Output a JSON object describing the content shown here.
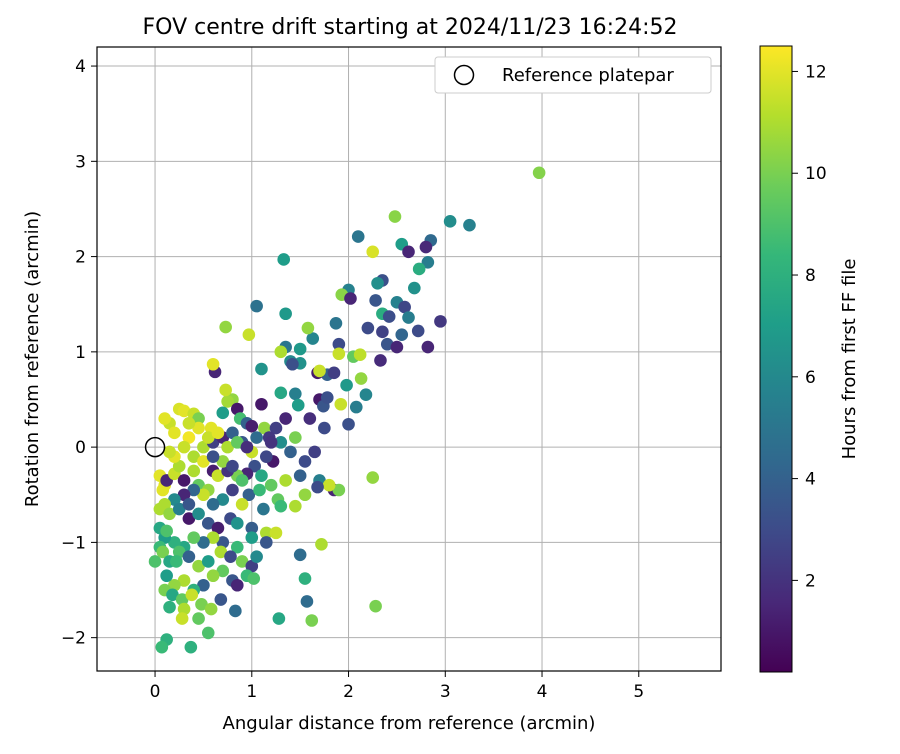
{
  "chart_data": {
    "type": "scatter",
    "title": "FOV centre drift starting at 2024/11/23 16:24:52",
    "xlabel": "Angular distance from reference (arcmin)",
    "ylabel": "Rotation from reference (arcmin)",
    "xlim": [
      -0.6,
      5.85
    ],
    "ylim": [
      -2.35,
      4.2
    ],
    "xticks": [
      0,
      1,
      2,
      3,
      4,
      5
    ],
    "yticks": [
      -2,
      -1,
      0,
      1,
      2,
      3,
      4
    ],
    "grid": true,
    "legend": {
      "position": "top-right",
      "entries": [
        "Reference platepar"
      ]
    },
    "reference_point": {
      "x": 0,
      "y": 0,
      "label": "Reference platepar"
    },
    "colorbar": {
      "label": "Hours from first FF file",
      "range": [
        0.2,
        12.5
      ],
      "ticks": [
        2,
        4,
        6,
        8,
        10,
        12
      ],
      "colormap": "viridis"
    },
    "points": [
      [
        3.97,
        2.88,
        10.2
      ],
      [
        3.25,
        2.33,
        5.6
      ],
      [
        3.05,
        2.37,
        6.2
      ],
      [
        2.85,
        2.17,
        4.4
      ],
      [
        2.8,
        2.1,
        1.6
      ],
      [
        2.48,
        2.42,
        10.3
      ],
      [
        2.55,
        2.13,
        7.0
      ],
      [
        2.62,
        2.05,
        1.5
      ],
      [
        2.25,
        2.05,
        11.8
      ],
      [
        2.1,
        2.21,
        5.0
      ],
      [
        2.82,
        1.94,
        5.4
      ],
      [
        2.73,
        1.87,
        7.8
      ],
      [
        2.68,
        1.67,
        6.4
      ],
      [
        2.35,
        1.75,
        3.2
      ],
      [
        2.5,
        1.52,
        5.6
      ],
      [
        2.3,
        1.72,
        6.3
      ],
      [
        2.0,
        1.65,
        5.6
      ],
      [
        1.93,
        1.6,
        10.3
      ],
      [
        2.02,
        1.56,
        1.5
      ],
      [
        2.28,
        1.54,
        3.5
      ],
      [
        2.35,
        1.4,
        7.8
      ],
      [
        2.42,
        1.37,
        3.1
      ],
      [
        2.58,
        1.47,
        2.8
      ],
      [
        2.95,
        1.32,
        2.2
      ],
      [
        2.62,
        1.36,
        5.4
      ],
      [
        2.55,
        1.18,
        4.2
      ],
      [
        2.72,
        1.22,
        3.0
      ],
      [
        2.4,
        1.08,
        3.5
      ],
      [
        2.5,
        1.05,
        1.5
      ],
      [
        2.82,
        1.05,
        1.5
      ],
      [
        2.35,
        1.21,
        2.6
      ],
      [
        2.2,
        1.25,
        3.0
      ],
      [
        1.87,
        1.3,
        5.0
      ],
      [
        1.9,
        1.08,
        3.0
      ],
      [
        2.05,
        0.95,
        9.5
      ],
      [
        2.12,
        0.97,
        11.3
      ],
      [
        2.33,
        0.91,
        1.7
      ],
      [
        2.18,
        0.55,
        5.8
      ],
      [
        2.13,
        0.72,
        10.5
      ],
      [
        1.98,
        0.65,
        6.8
      ],
      [
        2.08,
        0.42,
        5.4
      ],
      [
        2.0,
        0.24,
        3.2
      ],
      [
        1.92,
        0.45,
        11.5
      ],
      [
        1.9,
        0.98,
        11.5
      ],
      [
        1.78,
        0.76,
        4.0
      ],
      [
        1.63,
        1.14,
        5.8
      ],
      [
        1.58,
        1.25,
        10.5
      ],
      [
        1.5,
        1.03,
        6.8
      ],
      [
        1.35,
        1.05,
        5.0
      ],
      [
        1.3,
        1.0,
        11.0
      ],
      [
        1.35,
        1.4,
        6.8
      ],
      [
        1.33,
        1.97,
        7.0
      ],
      [
        1.05,
        1.48,
        4.8
      ],
      [
        0.97,
        1.18,
        11.5
      ],
      [
        0.73,
        1.26,
        10.5
      ],
      [
        1.1,
        0.82,
        6.5
      ],
      [
        1.5,
        0.88,
        6.4
      ],
      [
        1.4,
        0.9,
        6.0
      ],
      [
        1.42,
        0.87,
        3.2
      ],
      [
        1.3,
        0.57,
        7.5
      ],
      [
        1.45,
        0.56,
        5.5
      ],
      [
        1.7,
        0.5,
        1.0
      ],
      [
        1.68,
        0.78,
        1.0
      ],
      [
        1.74,
        0.43,
        3.5
      ],
      [
        1.7,
        0.8,
        11.5
      ],
      [
        1.85,
        0.78,
        2.5
      ],
      [
        1.78,
        0.52,
        3.2
      ],
      [
        1.48,
        0.44,
        7.0
      ],
      [
        1.1,
        0.45,
        1.0
      ],
      [
        0.8,
        0.5,
        10.5
      ],
      [
        0.62,
        0.79,
        1.5
      ],
      [
        0.6,
        0.87,
        12.0
      ],
      [
        0.75,
        0.48,
        10.8
      ],
      [
        0.73,
        0.6,
        11.5
      ],
      [
        0.7,
        0.36,
        7.0
      ],
      [
        0.85,
        0.4,
        1.0
      ],
      [
        0.88,
        0.3,
        8.8
      ],
      [
        0.95,
        0.25,
        4.0
      ],
      [
        1.0,
        0.22,
        1.2
      ],
      [
        1.13,
        0.2,
        10.5
      ],
      [
        1.25,
        0.2,
        2.5
      ],
      [
        1.35,
        0.3,
        1.5
      ],
      [
        1.6,
        0.3,
        1.8
      ],
      [
        1.75,
        0.2,
        3.0
      ],
      [
        1.45,
        0.1,
        10.0
      ],
      [
        1.3,
        0.05,
        6.2
      ],
      [
        1.18,
        0.1,
        2.2
      ],
      [
        0.25,
        0.4,
        11.8
      ],
      [
        0.3,
        0.38,
        12.0
      ],
      [
        0.4,
        0.35,
        11.5
      ],
      [
        0.45,
        0.3,
        10.0
      ],
      [
        0.15,
        0.25,
        11.5
      ],
      [
        0.1,
        0.3,
        12.0
      ],
      [
        0.2,
        0.15,
        12.0
      ],
      [
        0.35,
        0.1,
        12.3
      ],
      [
        0.5,
        0.0,
        11.0
      ],
      [
        0.6,
        0.05,
        2.5
      ],
      [
        0.7,
        0.1,
        1.5
      ],
      [
        0.8,
        0.15,
        4.0
      ],
      [
        0.9,
        0.05,
        3.5
      ],
      [
        1.05,
        0.1,
        4.5
      ],
      [
        1.2,
        0.05,
        2.0
      ],
      [
        1.4,
        -0.05,
        4.0
      ],
      [
        1.55,
        -0.15,
        3.0
      ],
      [
        1.65,
        -0.05,
        2.5
      ],
      [
        1.22,
        -0.15,
        1.0
      ],
      [
        1.03,
        -0.2,
        3.2
      ],
      [
        0.95,
        -0.28,
        1.5
      ],
      [
        0.85,
        -0.3,
        10.0
      ],
      [
        0.6,
        -0.25,
        1.2
      ],
      [
        0.4,
        -0.25,
        11.0
      ],
      [
        0.05,
        -0.3,
        12.0
      ],
      [
        0.1,
        -0.4,
        12.0
      ],
      [
        0.08,
        -0.45,
        12.0
      ],
      [
        0.12,
        -0.35,
        1.5
      ],
      [
        0.2,
        -0.28,
        11.5
      ],
      [
        0.25,
        -0.2,
        11.0
      ],
      [
        0.3,
        -0.35,
        1.0
      ],
      [
        0.45,
        -0.4,
        9.5
      ],
      [
        0.55,
        -0.45,
        10.5
      ],
      [
        0.65,
        -0.3,
        11.5
      ],
      [
        0.75,
        -0.25,
        2.0
      ],
      [
        0.9,
        -0.35,
        9.0
      ],
      [
        1.1,
        -0.3,
        7.5
      ],
      [
        1.2,
        -0.4,
        9.5
      ],
      [
        1.35,
        -0.35,
        11.0
      ],
      [
        1.5,
        -0.3,
        4.0
      ],
      [
        1.7,
        -0.35,
        5.5
      ],
      [
        1.85,
        -0.45,
        1.5
      ],
      [
        1.9,
        -0.45,
        10.0
      ],
      [
        1.8,
        -0.4,
        11.5
      ],
      [
        1.68,
        -0.42,
        3.0
      ],
      [
        2.25,
        -0.32,
        10.5
      ],
      [
        1.55,
        -0.5,
        10.5
      ],
      [
        1.27,
        -0.55,
        9.5
      ],
      [
        0.97,
        -0.5,
        4.0
      ],
      [
        0.8,
        -0.45,
        2.5
      ],
      [
        0.7,
        -0.55,
        6.0
      ],
      [
        0.6,
        -0.6,
        4.5
      ],
      [
        0.5,
        -0.5,
        11.5
      ],
      [
        0.4,
        -0.45,
        4.2
      ],
      [
        0.3,
        -0.5,
        1.5
      ],
      [
        0.2,
        -0.55,
        6.0
      ],
      [
        0.1,
        -0.6,
        11.0
      ],
      [
        0.05,
        -0.65,
        11.0
      ],
      [
        0.15,
        -0.7,
        10.5
      ],
      [
        0.25,
        -0.65,
        5.5
      ],
      [
        0.35,
        -0.75,
        1.0
      ],
      [
        0.45,
        -0.7,
        6.2
      ],
      [
        0.55,
        -0.8,
        3.5
      ],
      [
        0.65,
        -0.85,
        1.2
      ],
      [
        0.78,
        -0.75,
        3.0
      ],
      [
        0.85,
        -0.8,
        6.5
      ],
      [
        1.0,
        -0.85,
        3.8
      ],
      [
        1.15,
        -0.9,
        11.0
      ],
      [
        1.25,
        -0.9,
        11.5
      ],
      [
        1.45,
        -0.62,
        11.0
      ],
      [
        1.72,
        -1.02,
        11.0
      ],
      [
        1.5,
        -1.13,
        4.5
      ],
      [
        1.15,
        -1.0,
        3.5
      ],
      [
        1.0,
        -0.95,
        7.0
      ],
      [
        0.85,
        -1.05,
        8.5
      ],
      [
        0.7,
        -1.0,
        3.5
      ],
      [
        0.6,
        -0.95,
        11.0
      ],
      [
        0.5,
        -1.0,
        4.5
      ],
      [
        0.4,
        -0.95,
        9.5
      ],
      [
        0.3,
        -1.05,
        7.5
      ],
      [
        0.2,
        -1.0,
        8.0
      ],
      [
        0.1,
        -0.95,
        7.0
      ],
      [
        0.05,
        -1.05,
        8.5
      ],
      [
        0.0,
        -1.2,
        9.0
      ],
      [
        0.08,
        -1.1,
        10.0
      ],
      [
        0.15,
        -1.2,
        7.5
      ],
      [
        0.25,
        -1.1,
        9.0
      ],
      [
        0.35,
        -1.15,
        4.0
      ],
      [
        0.45,
        -1.25,
        10.5
      ],
      [
        0.55,
        -1.2,
        7.0
      ],
      [
        0.68,
        -1.1,
        11.0
      ],
      [
        0.78,
        -1.15,
        3.0
      ],
      [
        0.9,
        -1.2,
        10.0
      ],
      [
        1.0,
        -1.25,
        2.5
      ],
      [
        1.05,
        -1.15,
        6.0
      ],
      [
        0.95,
        -1.35,
        8.5
      ],
      [
        0.8,
        -1.4,
        3.5
      ],
      [
        0.85,
        -1.45,
        1.5
      ],
      [
        1.02,
        -1.38,
        9.0
      ],
      [
        0.7,
        -1.3,
        9.5
      ],
      [
        0.6,
        -1.35,
        10.5
      ],
      [
        0.5,
        -1.45,
        4.0
      ],
      [
        0.4,
        -1.5,
        8.0
      ],
      [
        0.3,
        -1.4,
        11.0
      ],
      [
        0.2,
        -1.45,
        10.5
      ],
      [
        0.1,
        -1.5,
        10.0
      ],
      [
        0.18,
        -1.55,
        7.5
      ],
      [
        0.28,
        -1.6,
        9.5
      ],
      [
        0.38,
        -1.55,
        11.5
      ],
      [
        0.48,
        -1.65,
        10.0
      ],
      [
        0.58,
        -1.7,
        10.5
      ],
      [
        0.68,
        -1.6,
        3.5
      ],
      [
        0.83,
        -1.72,
        4.5
      ],
      [
        0.15,
        -1.68,
        8.0
      ],
      [
        0.3,
        -1.7,
        11.0
      ],
      [
        0.45,
        -1.8,
        9.5
      ],
      [
        0.55,
        -1.95,
        9.0
      ],
      [
        0.28,
        -1.8,
        11.5
      ],
      [
        0.12,
        -2.02,
        8.0
      ],
      [
        0.07,
        -2.1,
        8.5
      ],
      [
        0.37,
        -2.1,
        8.0
      ],
      [
        1.28,
        -1.8,
        7.5
      ],
      [
        1.62,
        -1.82,
        10.0
      ],
      [
        2.28,
        -1.67,
        10.0
      ],
      [
        1.55,
        -1.38,
        8.0
      ],
      [
        1.57,
        -1.62,
        4.5
      ],
      [
        0.12,
        -1.35,
        7.0
      ],
      [
        0.22,
        -1.2,
        8.5
      ],
      [
        0.05,
        -0.85,
        7.5
      ],
      [
        0.12,
        -0.88,
        9.0
      ],
      [
        0.9,
        -0.6,
        11.5
      ],
      [
        1.12,
        -0.65,
        5.0
      ],
      [
        1.3,
        -0.62,
        8.5
      ],
      [
        0.58,
        0.2,
        12.0
      ],
      [
        0.45,
        0.2,
        12.0
      ],
      [
        0.35,
        0.25,
        11.5
      ],
      [
        0.55,
        0.1,
        11.5
      ],
      [
        0.65,
        0.15,
        12.0
      ],
      [
        0.75,
        0.0,
        11.0
      ],
      [
        0.85,
        0.05,
        9.5
      ],
      [
        1.0,
        -0.05,
        11.5
      ],
      [
        1.15,
        -0.1,
        2.8
      ],
      [
        0.95,
        0.0,
        1.8
      ],
      [
        0.3,
        0.0,
        11.5
      ],
      [
        0.2,
        -0.1,
        12.0
      ],
      [
        0.15,
        -0.05,
        11.5
      ],
      [
        0.4,
        -0.1,
        11.0
      ],
      [
        0.5,
        -0.15,
        12.0
      ],
      [
        0.7,
        -0.15,
        10.5
      ],
      [
        0.8,
        -0.2,
        2.8
      ],
      [
        0.6,
        -0.1,
        3.2
      ],
      [
        1.08,
        -0.45,
        8.5
      ],
      [
        0.35,
        -0.6,
        3.5
      ]
    ]
  }
}
